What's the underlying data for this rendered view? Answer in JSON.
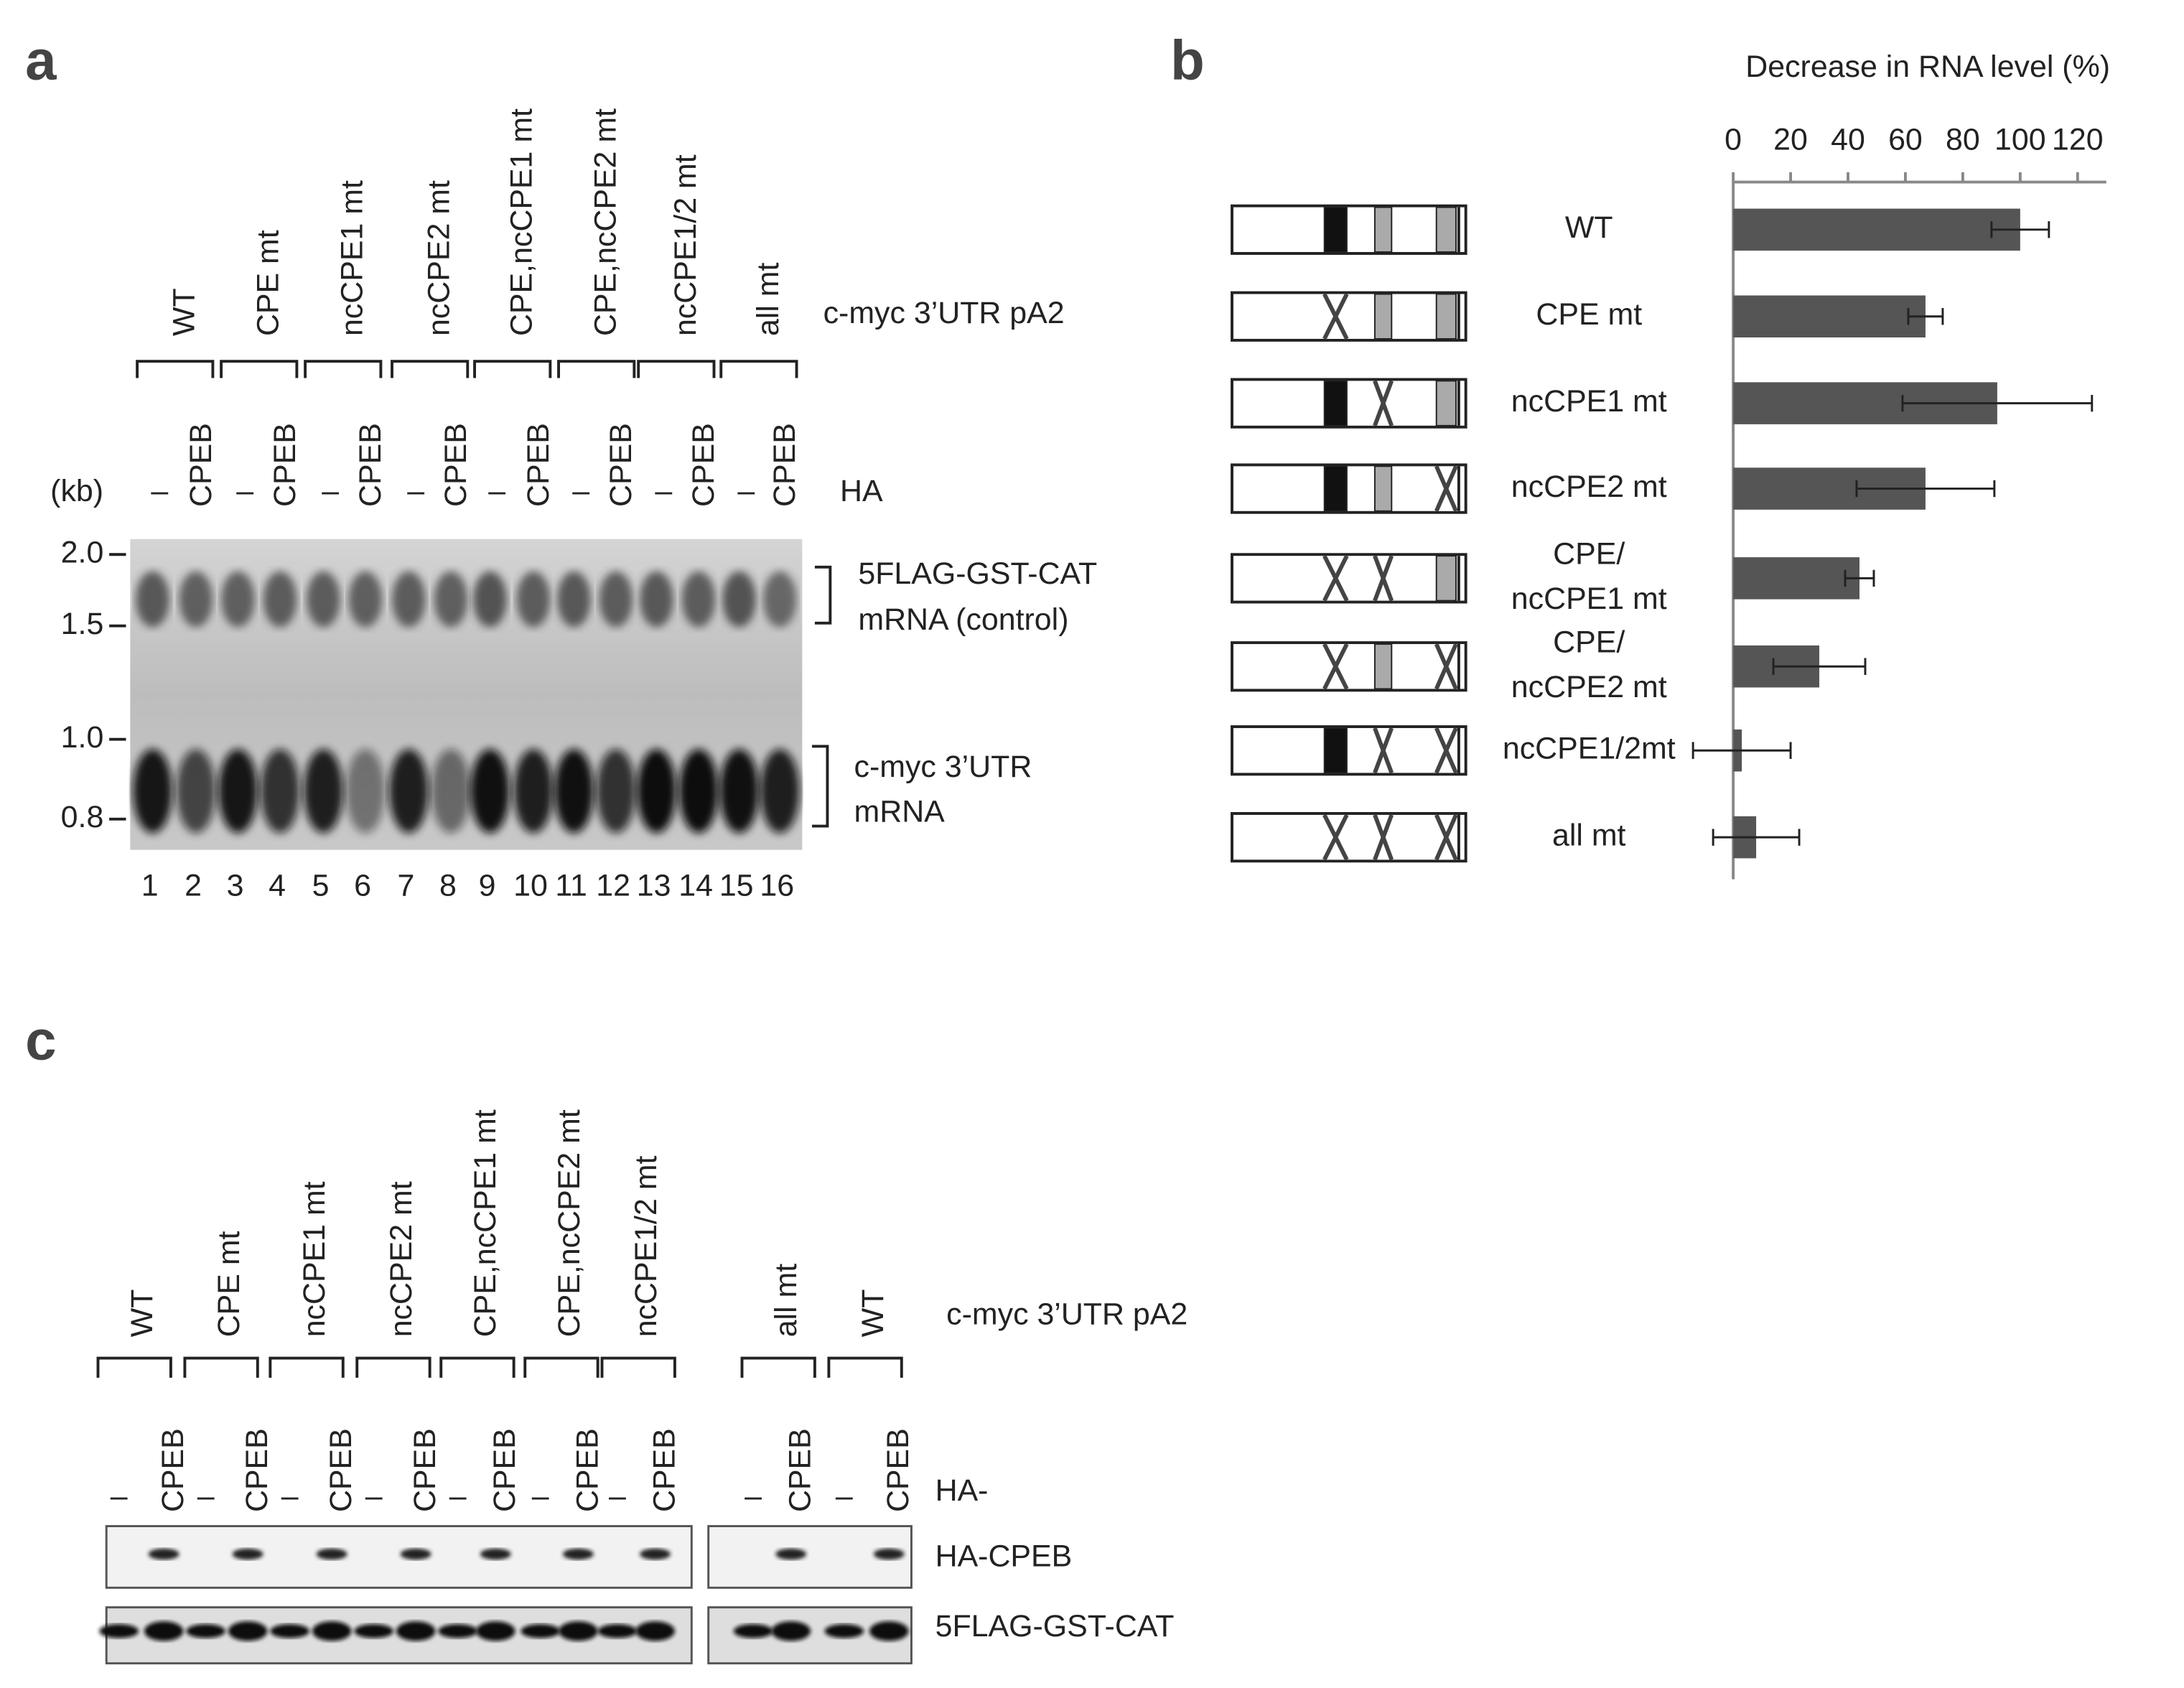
{
  "panel_a": {
    "label": "a",
    "constructs": [
      "WT",
      "CPE mt",
      "ncCPE1 mt",
      "ncCPE2 mt",
      "CPE,ncCPE1 mt",
      "CPE,ncCPE2 mt",
      "ncCPE1/2 mt",
      "all mt"
    ],
    "construct_caption": "c-myc 3’UTR pA2",
    "unit": "(kb)",
    "lanes": [
      "–",
      "CPEB",
      "–",
      "CPEB",
      "–",
      "CPEB",
      "–",
      "CPEB",
      "–",
      "CPEB",
      "–",
      "CPEB",
      "–",
      "CPEB",
      "–",
      "CPEB"
    ],
    "lane_caption": "HA",
    "markers": [
      "2.0",
      "1.5",
      "1.0",
      "0.8"
    ],
    "bands": [
      [
        "5FLAG-GST-CAT",
        "mRNA (control)"
      ],
      [
        "c-myc 3’UTR",
        "mRNA"
      ]
    ],
    "lane_numbers": [
      "1",
      "2",
      "3",
      "4",
      "5",
      "6",
      "7",
      "8",
      "9",
      "10",
      "11",
      "12",
      "13",
      "14",
      "15",
      "16"
    ]
  },
  "panel_b": {
    "label": "b"
  },
  "chart_data": {
    "type": "bar",
    "orientation": "horizontal",
    "title": "Decrease in RNA level (%)",
    "categories": [
      [
        "WT"
      ],
      [
        "CPE mt"
      ],
      [
        "ncCPE1 mt"
      ],
      [
        "ncCPE2 mt"
      ],
      [
        "CPE/",
        "ncCPE1 mt"
      ],
      [
        "CPE/",
        "ncCPE2 mt"
      ],
      [
        "ncCPE1/2mt"
      ],
      [
        "all mt"
      ]
    ],
    "values": [
      100,
      67,
      92,
      67,
      44,
      30,
      3,
      8
    ],
    "errors": [
      10,
      6,
      33,
      24,
      5,
      16,
      17,
      15
    ],
    "color": "#555555",
    "xlim": [
      0,
      130
    ],
    "xticks": [
      0,
      20,
      40,
      60,
      80,
      100,
      120
    ]
  },
  "panel_c": {
    "label": "c",
    "constructs": [
      "WT",
      "CPE mt",
      "ncCPE1 mt",
      "ncCPE2 mt",
      "CPE,ncCPE1 mt",
      "CPE,ncCPE2 mt",
      "ncCPE1/2 mt",
      "all mt",
      "WT"
    ],
    "construct_caption": "c-myc 3’UTR pA2",
    "lanes": [
      "–",
      "CPEB",
      "–",
      "CPEB",
      "–",
      "CPEB",
      "–",
      "CPEB",
      "–",
      "CPEB",
      "–",
      "CPEB",
      "–",
      "CPEB",
      "–",
      "CPEB",
      "–",
      "CPEB"
    ],
    "lane_caption": "HA-",
    "blots": [
      "HA-CPEB",
      "5FLAG-GST-CAT"
    ]
  }
}
